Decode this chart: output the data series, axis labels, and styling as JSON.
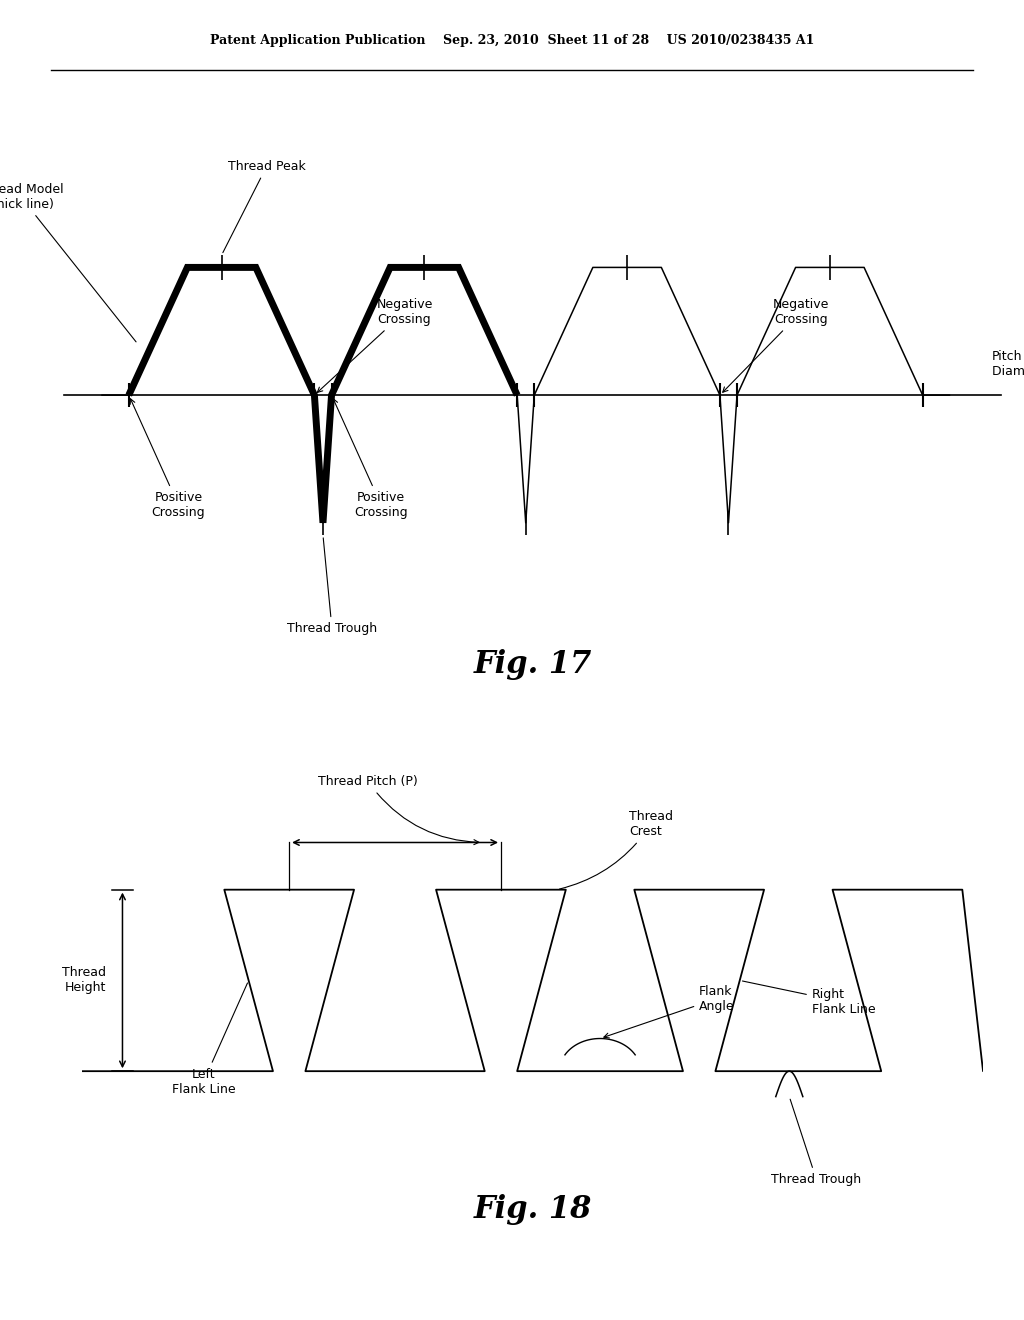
{
  "bg_color": "#ffffff",
  "header_text": "Patent Application Publication    Sep. 23, 2010  Sheet 11 of 28    US 2010/0238435 A1",
  "fig17_title": "Fig. 17",
  "fig18_title": "Fig. 18",
  "fig17_labels": {
    "thread_peak": "Thread Peak",
    "thread_model": "Thread Model\n(thick line)",
    "neg_crossing1": "Negative\nCrossing",
    "neg_crossing2": "Negative\nCrossing",
    "pos_crossing1": "Positive\nCrossing",
    "pos_crossing2": "Positive\nCrossing",
    "thread_trough": "Thread Trough",
    "pitch_diameter": "Pitch\nDiameter Line"
  },
  "fig18_labels": {
    "thread_pitch": "Thread Pitch (P)",
    "thread_crest": "Thread\nCrest",
    "thread_height": "Thread\nHeight",
    "left_flank": "Left\nFlank Line",
    "right_flank": "Right\nFlank Line",
    "flank_angle": "Flank\nAngle",
    "thread_trough": "Thread Trough"
  }
}
